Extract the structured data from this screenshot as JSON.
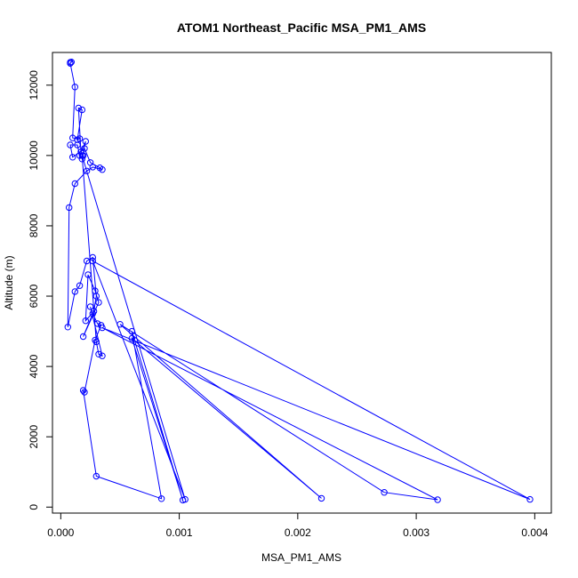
{
  "chart_data": {
    "type": "line",
    "title": "ATOM1 Northeast_Pacific MSA_PM1_AMS",
    "xlabel": "MSA_PM1_AMS",
    "ylabel": "Altitude (m)",
    "xlim": [
      -7e-05,
      0.00414
    ],
    "ylim": [
      -170,
      12930
    ],
    "x_ticks": [
      {
        "value": 0.0,
        "label": "0.000"
      },
      {
        "value": 0.001,
        "label": "0.001"
      },
      {
        "value": 0.002,
        "label": "0.002"
      },
      {
        "value": 0.003,
        "label": "0.003"
      },
      {
        "value": 0.004,
        "label": "0.004"
      }
    ],
    "y_ticks": [
      {
        "value": 0,
        "label": "0"
      },
      {
        "value": 2000,
        "label": "2000"
      },
      {
        "value": 4000,
        "label": "4000"
      },
      {
        "value": 6000,
        "label": "6000"
      },
      {
        "value": 8000,
        "label": "8000"
      },
      {
        "value": 10000,
        "label": "10000"
      },
      {
        "value": 12000,
        "label": "12000"
      }
    ],
    "grid": false,
    "legend": "none",
    "colors": {
      "series": "#0000ff",
      "axis": "#000000"
    },
    "series": [
      {
        "x": [
          8e-05,
          9e-05,
          8e-05,
          0.00012,
          0.0001,
          0.00016,
          0.00014,
          0.00018,
          0.00015,
          0.00017,
          0.00019,
          0.00018,
          0.00021,
          0.00016,
          0.00014,
          8e-05,
          0.0001,
          0.0002,
          0.00025,
          0.00033,
          0.00035,
          0.00027,
          0.00022,
          0.00012,
          7e-05,
          6e-05,
          0.00012,
          0.00016,
          0.00022,
          0.00027,
          0.0003,
          0.00028,
          0.00021,
          0.00023,
          0.00029,
          0.00032,
          0.00019,
          0.00027,
          0.00031,
          0.00034,
          0.00029,
          0.0002,
          0.00019,
          0.0003,
          0.00085,
          0.0006,
          0.00103,
          0.0006,
          0.0022,
          0.0005,
          0.00273,
          0.00318,
          0.00035,
          0.00396,
          0.00027,
          0.00105,
          0.00018,
          0.0003,
          0.00032,
          0.00035,
          0.00025
        ],
        "y": [
          12650,
          12660,
          12620,
          11950,
          10500,
          10480,
          10450,
          11300,
          11350,
          10100,
          10000,
          9900,
          10400,
          10000,
          10300,
          10300,
          9950,
          10200,
          9800,
          9650,
          9600,
          9670,
          9560,
          9200,
          8520,
          5120,
          6130,
          6300,
          7000,
          7100,
          6000,
          5570,
          5300,
          6610,
          6150,
          5820,
          4850,
          5500,
          5220,
          5170,
          4750,
          3270,
          3320,
          880,
          240,
          5000,
          200,
          4800,
          250,
          5200,
          420,
          210,
          5100,
          220,
          7000,
          220,
          10000,
          4700,
          4350,
          4300,
          5700
        ]
      }
    ]
  }
}
